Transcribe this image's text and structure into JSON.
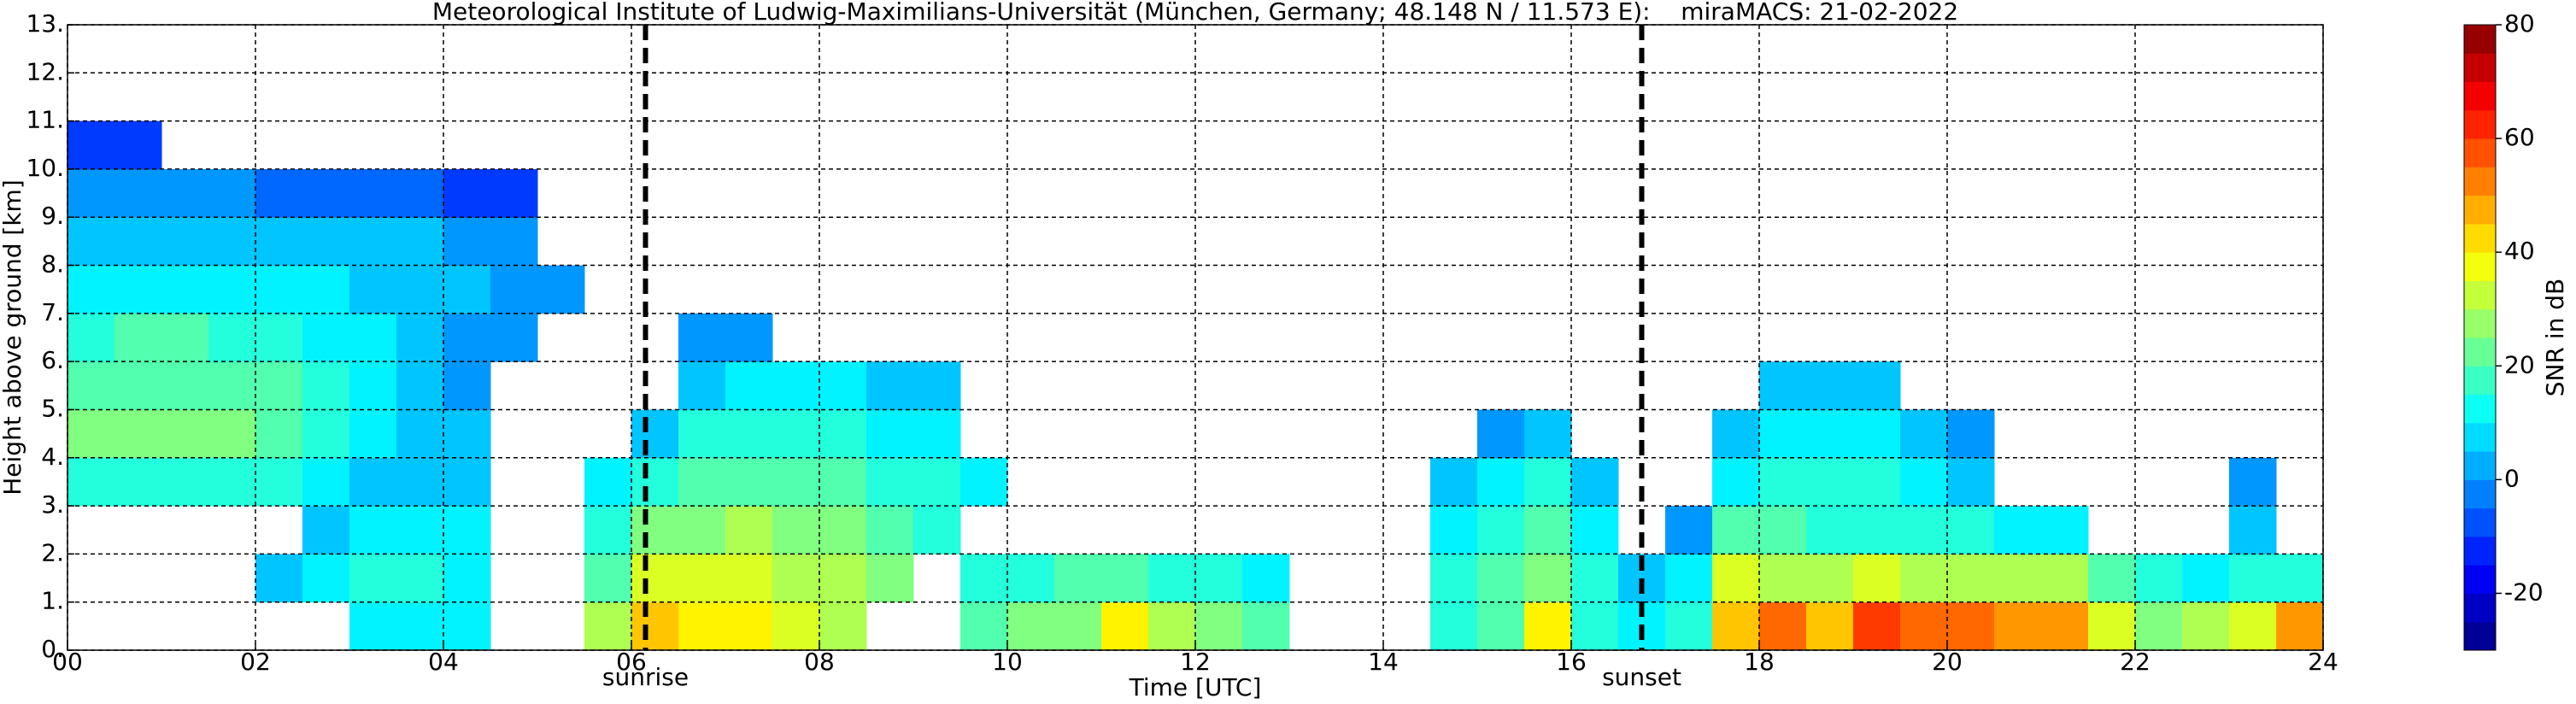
{
  "chart_data": {
    "type": "heatmap",
    "title": "Meteorological Institute of Ludwig-Maximilians-Universität (München, Germany; 48.148 N / 11.573 E):    miraMACS: 21-02-2022",
    "x_label": "Time [UTC]",
    "y_label": "Height above ground [km]",
    "colorbar_label": "SNR in dB",
    "colormap": "jet",
    "grid": true,
    "xlim": [
      0,
      24
    ],
    "xticks": [
      {
        "value": 0,
        "label": "00"
      },
      {
        "value": 2,
        "label": "02"
      },
      {
        "value": 4,
        "label": "04"
      },
      {
        "value": 6,
        "label": "06"
      },
      {
        "value": 8,
        "label": "08"
      },
      10,
      12,
      14,
      16,
      18,
      20,
      22,
      24
    ],
    "ylim": [
      0,
      13
    ],
    "yticks": [
      {
        "value": 0,
        "label": "0."
      },
      {
        "value": 1,
        "label": "1."
      },
      {
        "value": 2,
        "label": "2."
      },
      {
        "value": 3,
        "label": "3."
      },
      {
        "value": 4,
        "label": "4."
      },
      {
        "value": 5,
        "label": "5."
      },
      {
        "value": 6,
        "label": "6."
      },
      {
        "value": 7,
        "label": "7."
      },
      {
        "value": 8,
        "label": "8."
      },
      {
        "value": 9,
        "label": "9."
      },
      {
        "value": 10,
        "label": "10."
      },
      {
        "value": 11,
        "label": "11."
      },
      {
        "value": 12,
        "label": "12."
      },
      {
        "value": 13,
        "label": "13."
      }
    ],
    "clim": [
      -30,
      80
    ],
    "cticks": [
      -20,
      0,
      20,
      40,
      60,
      80
    ],
    "annotations": [
      {
        "text": "sunrise",
        "x": 6.15
      },
      {
        "text": "sunset",
        "x": 16.75
      }
    ],
    "x_edges": [
      0,
      0.5,
      1,
      1.5,
      2,
      2.5,
      3,
      3.5,
      4,
      4.5,
      5,
      5.5,
      6,
      6.5,
      7,
      7.5,
      8,
      8.5,
      9,
      9.5,
      10,
      10.5,
      11,
      11.5,
      12,
      12.5,
      13,
      13.5,
      14,
      14.5,
      15,
      15.5,
      16,
      16.5,
      17,
      17.5,
      18,
      18.5,
      19,
      19.5,
      20,
      20.5,
      21,
      21.5,
      22,
      22.5,
      23,
      23.5,
      24
    ],
    "y_edges": [
      0,
      1,
      2,
      3,
      4,
      5,
      6,
      7,
      8,
      9,
      10,
      11
    ],
    "z": [
      [
        null,
        null,
        null,
        null,
        null,
        null,
        10,
        10,
        10,
        null,
        null,
        30,
        45,
        40,
        40,
        35,
        30,
        null,
        null,
        20,
        25,
        25,
        40,
        30,
        25,
        20,
        null,
        null,
        null,
        15,
        20,
        40,
        15,
        10,
        15,
        45,
        55,
        45,
        60,
        55,
        55,
        50,
        50,
        35,
        25,
        30,
        35,
        50
      ],
      [
        null,
        null,
        null,
        null,
        5,
        10,
        15,
        15,
        10,
        null,
        null,
        20,
        35,
        35,
        35,
        30,
        30,
        25,
        null,
        15,
        15,
        20,
        20,
        15,
        15,
        10,
        null,
        null,
        null,
        15,
        20,
        25,
        15,
        5,
        10,
        35,
        30,
        30,
        35,
        30,
        30,
        30,
        30,
        20,
        15,
        10,
        15,
        15
      ],
      [
        null,
        null,
        null,
        null,
        null,
        5,
        10,
        10,
        10,
        null,
        null,
        15,
        25,
        25,
        30,
        25,
        25,
        20,
        15,
        null,
        null,
        null,
        null,
        null,
        null,
        null,
        null,
        null,
        null,
        10,
        15,
        20,
        10,
        null,
        0,
        20,
        20,
        15,
        15,
        15,
        15,
        10,
        10,
        null,
        null,
        null,
        5,
        null
      ],
      [
        15,
        15,
        15,
        15,
        15,
        10,
        5,
        5,
        5,
        null,
        null,
        10,
        15,
        20,
        20,
        20,
        20,
        15,
        15,
        10,
        null,
        null,
        null,
        null,
        null,
        null,
        null,
        null,
        null,
        5,
        10,
        15,
        5,
        null,
        null,
        10,
        15,
        15,
        15,
        10,
        5,
        null,
        null,
        null,
        null,
        null,
        0,
        null
      ],
      [
        25,
        25,
        25,
        25,
        20,
        15,
        10,
        5,
        5,
        null,
        null,
        null,
        5,
        15,
        15,
        15,
        15,
        10,
        10,
        null,
        null,
        null,
        null,
        null,
        null,
        null,
        null,
        null,
        null,
        null,
        0,
        5,
        null,
        null,
        null,
        5,
        10,
        10,
        10,
        5,
        0,
        null,
        null,
        null,
        null,
        null,
        null,
        null
      ],
      [
        20,
        20,
        20,
        20,
        20,
        15,
        10,
        5,
        0,
        null,
        null,
        null,
        null,
        5,
        10,
        10,
        10,
        5,
        5,
        null,
        null,
        null,
        null,
        null,
        null,
        null,
        null,
        null,
        null,
        null,
        null,
        null,
        null,
        null,
        null,
        null,
        5,
        5,
        5,
        null,
        null,
        null,
        null,
        null,
        null,
        null,
        null,
        null
      ],
      [
        15,
        20,
        20,
        15,
        15,
        10,
        10,
        5,
        0,
        0,
        null,
        null,
        null,
        0,
        0,
        null,
        null,
        null,
        null,
        null,
        null,
        null,
        null,
        null,
        null,
        null,
        null,
        null,
        null,
        null,
        null,
        null,
        null,
        null,
        null,
        null,
        null,
        null,
        null,
        null,
        null,
        null,
        null,
        null,
        null,
        null,
        null,
        null
      ],
      [
        10,
        10,
        10,
        10,
        10,
        10,
        5,
        5,
        5,
        0,
        0,
        null,
        null,
        null,
        null,
        null,
        null,
        null,
        null,
        null,
        null,
        null,
        null,
        null,
        null,
        null,
        null,
        null,
        null,
        null,
        null,
        null,
        null,
        null,
        null,
        null,
        null,
        null,
        null,
        null,
        null,
        null,
        null,
        null,
        null,
        null,
        null,
        null
      ],
      [
        5,
        5,
        5,
        5,
        5,
        5,
        5,
        5,
        0,
        0,
        null,
        null,
        null,
        null,
        null,
        null,
        null,
        null,
        null,
        null,
        null,
        null,
        null,
        null,
        null,
        null,
        null,
        null,
        null,
        null,
        null,
        null,
        null,
        null,
        null,
        null,
        null,
        null,
        null,
        null,
        null,
        null,
        null,
        null,
        null,
        null,
        null,
        null
      ],
      [
        0,
        0,
        0,
        0,
        -5,
        -5,
        -5,
        -5,
        -10,
        -10,
        null,
        null,
        null,
        null,
        null,
        null,
        null,
        null,
        null,
        null,
        null,
        null,
        null,
        null,
        null,
        null,
        null,
        null,
        null,
        null,
        null,
        null,
        null,
        null,
        null,
        null,
        null,
        null,
        null,
        null,
        null,
        null,
        null,
        null,
        null,
        null,
        null,
        null
      ],
      [
        -10,
        -10,
        null,
        null,
        null,
        null,
        null,
        null,
        null,
        null,
        null,
        null,
        null,
        null,
        null,
        null,
        null,
        null,
        null,
        null,
        null,
        null,
        null,
        null,
        null,
        null,
        null,
        null,
        null,
        null,
        null,
        null,
        null,
        null,
        null,
        null,
        null,
        null,
        null,
        null,
        null,
        null,
        null,
        null,
        null,
        null,
        null,
        null
      ]
    ]
  }
}
